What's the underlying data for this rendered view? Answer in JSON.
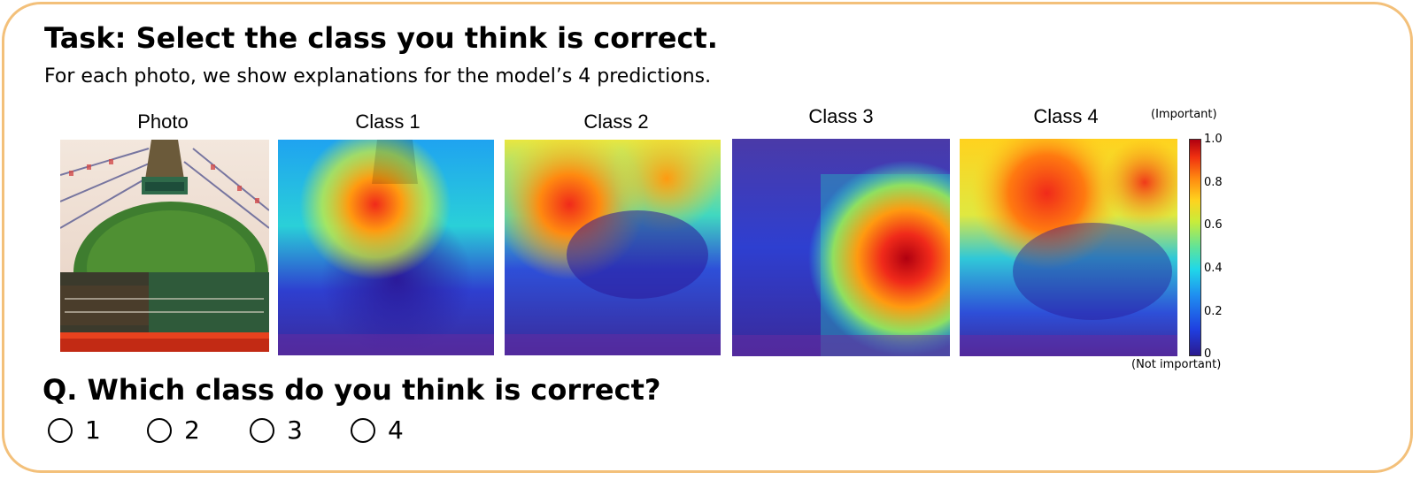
{
  "task": {
    "title": "Task: Select the class you think is correct.",
    "subtitle": "For each photo, we show explanations for the model’s 4 predictions."
  },
  "panels": [
    {
      "label": "Photo",
      "kind": "photo"
    },
    {
      "label": "Class 1",
      "kind": "heatmap"
    },
    {
      "label": "Class 2",
      "kind": "heatmap"
    },
    {
      "label": "Class 3",
      "kind": "heatmap"
    },
    {
      "label": "Class 4",
      "kind": "heatmap"
    }
  ],
  "colorbar": {
    "top_label": "(Important)",
    "bottom_label": "(Not important)",
    "ticks": [
      "1.0",
      "0.8",
      "0.6",
      "0.4",
      "0.2",
      "0"
    ],
    "colors": [
      "#2b1a8f",
      "#1f8ff0",
      "#20d8e8",
      "#c8ec3a",
      "#ffd21e",
      "#f03010",
      "#b00010"
    ]
  },
  "question": {
    "text": "Q. Which class do you think is correct?",
    "options": [
      "1",
      "2",
      "3",
      "4"
    ]
  },
  "accent_border_color": "#f3c07a"
}
